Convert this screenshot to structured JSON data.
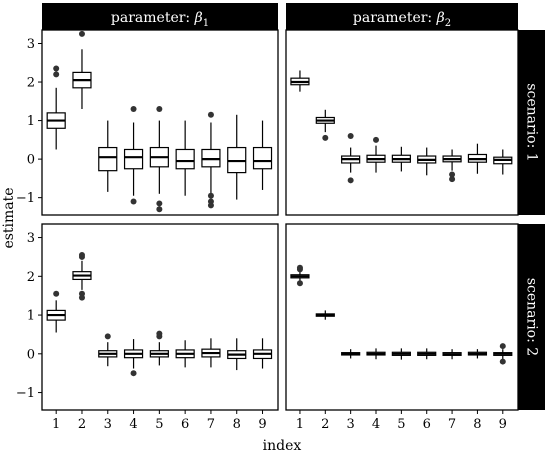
{
  "chart_data": {
    "type": "boxplot",
    "xlabel": "index",
    "ylabel": "estimate",
    "categories": [
      "1",
      "2",
      "3",
      "4",
      "5",
      "6",
      "7",
      "8",
      "9"
    ],
    "yticks": [
      "-1",
      "0",
      "1",
      "2",
      "3"
    ],
    "ylim": [
      -1.45,
      3.35
    ],
    "col_strips": [
      "parameter: β1",
      "parameter: β2"
    ],
    "row_strips": [
      "scenario: 1",
      "scenario: 2"
    ],
    "panels": [
      {
        "row": 0,
        "col": 0,
        "boxes": [
          {
            "x": "1",
            "q1": 0.8,
            "median": 1.0,
            "q3": 1.2,
            "lo": 0.25,
            "hi": 1.85,
            "outliers": [
              2.2,
              2.35
            ]
          },
          {
            "x": "2",
            "q1": 1.85,
            "median": 2.05,
            "q3": 2.25,
            "lo": 1.3,
            "hi": 2.85,
            "outliers": [
              3.25
            ]
          },
          {
            "x": "3",
            "q1": -0.3,
            "median": 0.05,
            "q3": 0.3,
            "lo": -0.85,
            "hi": 1.0,
            "outliers": []
          },
          {
            "x": "4",
            "q1": -0.25,
            "median": 0.05,
            "q3": 0.25,
            "lo": -0.95,
            "hi": 0.95,
            "outliers": [
              1.3,
              -1.1
            ]
          },
          {
            "x": "5",
            "q1": -0.2,
            "median": 0.05,
            "q3": 0.3,
            "lo": -0.9,
            "hi": 1.0,
            "outliers": [
              1.3,
              -1.15,
              -1.3
            ]
          },
          {
            "x": "6",
            "q1": -0.25,
            "median": -0.05,
            "q3": 0.25,
            "lo": -0.95,
            "hi": 1.0,
            "outliers": []
          },
          {
            "x": "7",
            "q1": -0.2,
            "median": 0.0,
            "q3": 0.25,
            "lo": -0.9,
            "hi": 0.95,
            "outliers": [
              1.15,
              -0.95,
              -1.1,
              -1.2
            ]
          },
          {
            "x": "8",
            "q1": -0.35,
            "median": -0.05,
            "q3": 0.3,
            "lo": -1.05,
            "hi": 1.15,
            "outliers": []
          },
          {
            "x": "9",
            "q1": -0.25,
            "median": -0.05,
            "q3": 0.3,
            "lo": -0.8,
            "hi": 1.0,
            "outliers": []
          }
        ]
      },
      {
        "row": 0,
        "col": 1,
        "boxes": [
          {
            "x": "1",
            "q1": 1.93,
            "median": 2.0,
            "q3": 2.1,
            "lo": 1.75,
            "hi": 2.3,
            "outliers": []
          },
          {
            "x": "2",
            "q1": 0.93,
            "median": 1.0,
            "q3": 1.08,
            "lo": 0.7,
            "hi": 1.28,
            "outliers": [
              0.55
            ]
          },
          {
            "x": "3",
            "q1": -0.1,
            "median": 0.0,
            "q3": 0.08,
            "lo": -0.35,
            "hi": 0.3,
            "outliers": [
              0.6,
              -0.55
            ]
          },
          {
            "x": "4",
            "q1": -0.08,
            "median": 0.0,
            "q3": 0.1,
            "lo": -0.35,
            "hi": 0.35,
            "outliers": [
              0.5
            ]
          },
          {
            "x": "5",
            "q1": -0.08,
            "median": 0.0,
            "q3": 0.1,
            "lo": -0.32,
            "hi": 0.32,
            "outliers": []
          },
          {
            "x": "6",
            "q1": -0.1,
            "median": -0.02,
            "q3": 0.08,
            "lo": -0.42,
            "hi": 0.3,
            "outliers": []
          },
          {
            "x": "7",
            "q1": -0.07,
            "median": 0.0,
            "q3": 0.08,
            "lo": -0.3,
            "hi": 0.25,
            "outliers": [
              -0.4,
              -0.52
            ]
          },
          {
            "x": "8",
            "q1": -0.08,
            "median": 0.0,
            "q3": 0.12,
            "lo": -0.38,
            "hi": 0.4,
            "outliers": []
          },
          {
            "x": "9",
            "q1": -0.12,
            "median": -0.02,
            "q3": 0.05,
            "lo": -0.4,
            "hi": 0.25,
            "outliers": []
          }
        ]
      },
      {
        "row": 1,
        "col": 0,
        "boxes": [
          {
            "x": "1",
            "q1": 0.87,
            "median": 1.0,
            "q3": 1.12,
            "lo": 0.55,
            "hi": 1.38,
            "outliers": [
              1.55
            ]
          },
          {
            "x": "2",
            "q1": 1.92,
            "median": 2.02,
            "q3": 2.12,
            "lo": 1.65,
            "hi": 2.4,
            "outliers": [
              2.5,
              2.55,
              1.55,
              1.45
            ]
          },
          {
            "x": "3",
            "q1": -0.08,
            "median": 0.0,
            "q3": 0.08,
            "lo": -0.32,
            "hi": 0.3,
            "outliers": [
              0.45
            ]
          },
          {
            "x": "4",
            "q1": -0.1,
            "median": 0.0,
            "q3": 0.1,
            "lo": -0.38,
            "hi": 0.38,
            "outliers": [
              -0.5
            ]
          },
          {
            "x": "5",
            "q1": -0.08,
            "median": 0.0,
            "q3": 0.08,
            "lo": -0.3,
            "hi": 0.3,
            "outliers": [
              0.45,
              0.52
            ]
          },
          {
            "x": "6",
            "q1": -0.1,
            "median": 0.0,
            "q3": 0.1,
            "lo": -0.35,
            "hi": 0.35,
            "outliers": []
          },
          {
            "x": "7",
            "q1": -0.08,
            "median": 0.02,
            "q3": 0.12,
            "lo": -0.35,
            "hi": 0.4,
            "outliers": []
          },
          {
            "x": "8",
            "q1": -0.12,
            "median": -0.02,
            "q3": 0.08,
            "lo": -0.42,
            "hi": 0.4,
            "outliers": []
          },
          {
            "x": "9",
            "q1": -0.12,
            "median": 0.0,
            "q3": 0.1,
            "lo": -0.38,
            "hi": 0.4,
            "outliers": []
          }
        ]
      },
      {
        "row": 1,
        "col": 1,
        "boxes": [
          {
            "x": "1",
            "q1": 1.96,
            "median": 2.0,
            "q3": 2.04,
            "lo": 1.88,
            "hi": 2.12,
            "outliers": [
              2.18,
              2.22,
              1.82
            ]
          },
          {
            "x": "2",
            "q1": 0.97,
            "median": 1.0,
            "q3": 1.03,
            "lo": 0.88,
            "hi": 1.12,
            "outliers": []
          },
          {
            "x": "3",
            "q1": -0.03,
            "median": 0.0,
            "q3": 0.03,
            "lo": -0.12,
            "hi": 0.12,
            "outliers": []
          },
          {
            "x": "4",
            "q1": -0.03,
            "median": 0.0,
            "q3": 0.04,
            "lo": -0.14,
            "hi": 0.14,
            "outliers": []
          },
          {
            "x": "5",
            "q1": -0.04,
            "median": 0.0,
            "q3": 0.04,
            "lo": -0.15,
            "hi": 0.14,
            "outliers": []
          },
          {
            "x": "6",
            "q1": -0.04,
            "median": 0.0,
            "q3": 0.04,
            "lo": -0.14,
            "hi": 0.14,
            "outliers": []
          },
          {
            "x": "7",
            "q1": -0.04,
            "median": -0.01,
            "q3": 0.03,
            "lo": -0.14,
            "hi": 0.12,
            "outliers": []
          },
          {
            "x": "8",
            "q1": -0.03,
            "median": 0.0,
            "q3": 0.04,
            "lo": -0.12,
            "hi": 0.12,
            "outliers": []
          },
          {
            "x": "9",
            "q1": -0.04,
            "median": 0.0,
            "q3": 0.03,
            "lo": -0.14,
            "hi": 0.12,
            "outliers": [
              0.2,
              -0.2
            ]
          }
        ]
      }
    ]
  }
}
